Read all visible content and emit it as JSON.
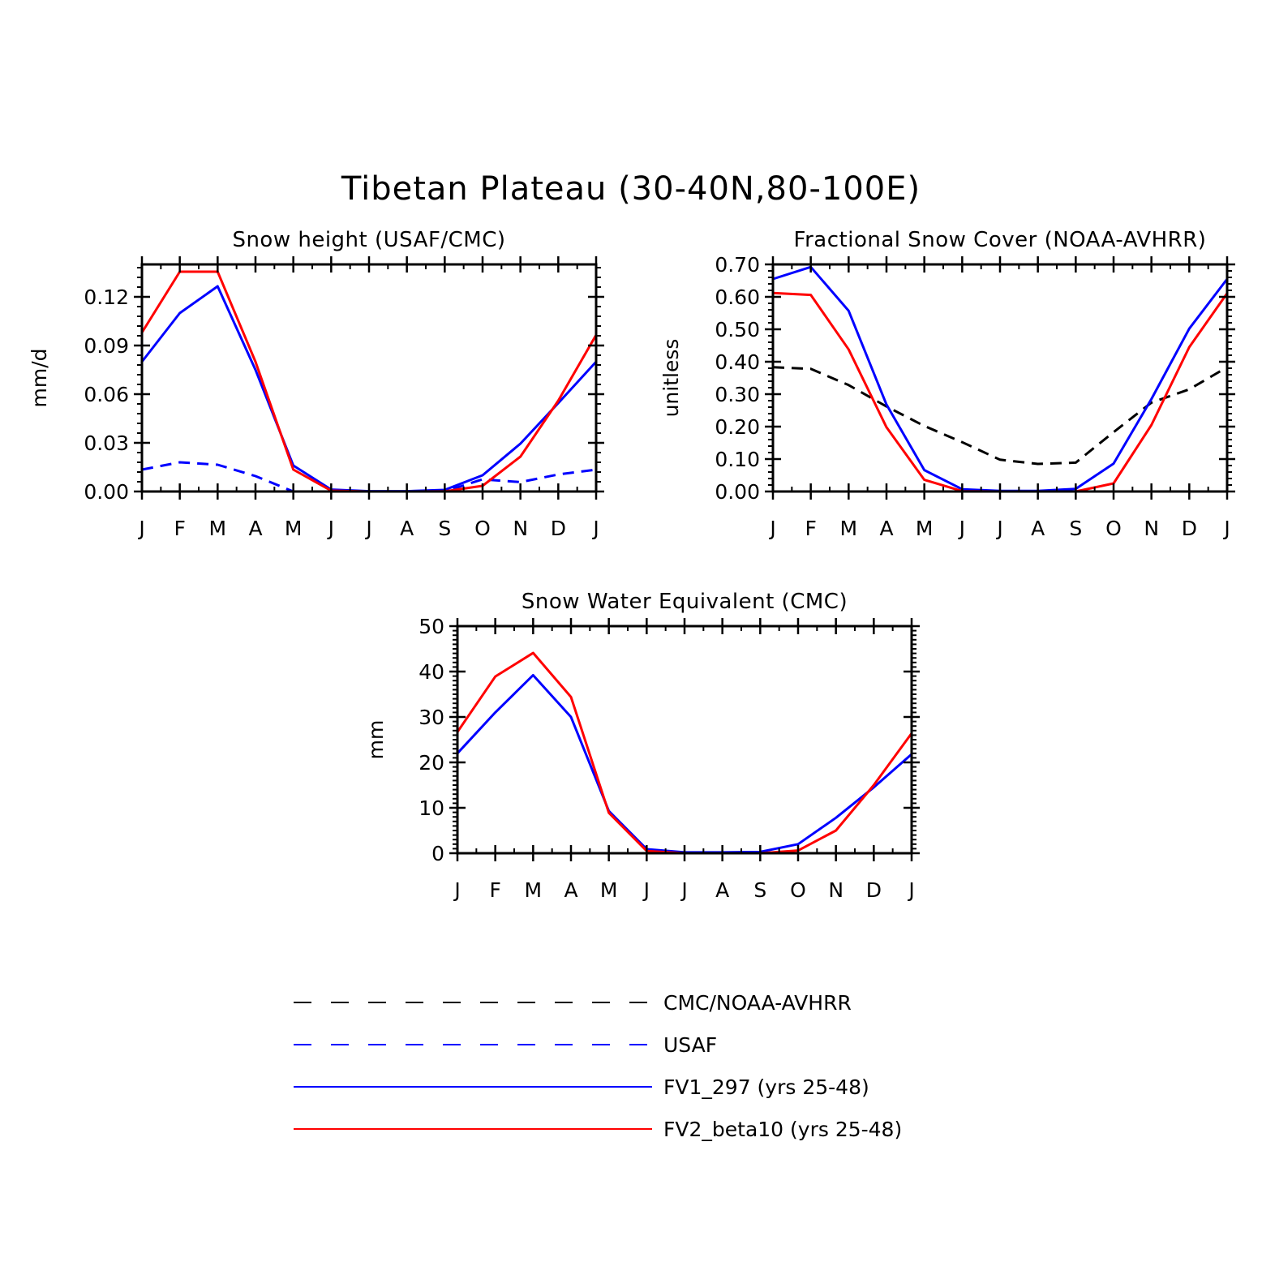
{
  "title": "Tibetan Plateau (30-40N,80-100E)",
  "colors": {
    "obs": "#000000",
    "usaf": "#0000ff",
    "fv1": "#0000ff",
    "fv2": "#ff0000"
  },
  "legend": [
    {
      "key": "obs",
      "label": "CMC/NOAA-AVHRR",
      "color": "#000000",
      "dash": true
    },
    {
      "key": "usaf",
      "label": "USAF",
      "color": "#0000ff",
      "dash": true
    },
    {
      "key": "fv1",
      "label": "FV1_297 (yrs 25-48)",
      "color": "#0000ff",
      "dash": false
    },
    {
      "key": "fv2",
      "label": "FV2_beta10 (yrs 25-48)",
      "color": "#ff0000",
      "dash": false
    }
  ],
  "chart_data": [
    {
      "type": "line",
      "title": "Snow height (USAF/CMC)",
      "xlabel": "",
      "ylabel": "mm/d",
      "categories": [
        "J",
        "F",
        "M",
        "A",
        "M",
        "J",
        "J",
        "A",
        "S",
        "O",
        "N",
        "D",
        "J"
      ],
      "ylim": [
        0,
        0.14
      ],
      "yticks": [
        0,
        0.03,
        0.06,
        0.09,
        0.12
      ],
      "ytick_labels": [
        "0.00",
        "0.03",
        "0.06",
        "0.09",
        "0.12"
      ],
      "series": [
        {
          "name": "CMC/NOAA-AVHRR",
          "color": "#000000",
          "dash": true,
          "values": [
            0,
            0,
            0,
            0,
            0,
            0,
            0,
            0,
            0,
            0,
            0,
            0,
            0
          ]
        },
        {
          "name": "USAF",
          "color": "#0000ff",
          "dash": true,
          "values": [
            0.0135,
            0.018,
            0.0165,
            0.0095,
            0.0,
            0.0,
            0.0,
            0.0,
            0.0,
            0.0075,
            0.0058,
            0.0105,
            0.0135
          ]
        },
        {
          "name": "FV1_297 (yrs 25-48)",
          "color": "#0000ff",
          "dash": false,
          "values": [
            0.08,
            0.11,
            0.1265,
            0.075,
            0.016,
            0.0012,
            0.0002,
            0.0002,
            0.001,
            0.01,
            0.0295,
            0.0545,
            0.08
          ]
        },
        {
          "name": "FV2_beta10 (yrs 25-48)",
          "color": "#ff0000",
          "dash": false,
          "values": [
            0.098,
            0.1355,
            0.1355,
            0.08,
            0.0135,
            0.0005,
            0.0,
            0.0,
            0.0001,
            0.0035,
            0.0215,
            0.056,
            0.0965
          ]
        }
      ]
    },
    {
      "type": "line",
      "title": "Fractional Snow Cover (NOAA-AVHRR)",
      "xlabel": "",
      "ylabel": "unitless",
      "categories": [
        "J",
        "F",
        "M",
        "A",
        "M",
        "J",
        "J",
        "A",
        "S",
        "O",
        "N",
        "D",
        "J"
      ],
      "ylim": [
        0,
        0.7
      ],
      "yticks": [
        0,
        0.1,
        0.2,
        0.3,
        0.4,
        0.5,
        0.6,
        0.7
      ],
      "ytick_labels": [
        "0.00",
        "0.10",
        "0.20",
        "0.30",
        "0.40",
        "0.50",
        "0.60",
        "0.70"
      ],
      "series": [
        {
          "name": "CMC/NOAA-AVHRR",
          "color": "#000000",
          "dash": true,
          "values": [
            0.383,
            0.378,
            0.328,
            0.262,
            0.202,
            0.152,
            0.098,
            0.085,
            0.089,
            0.183,
            0.274,
            0.315,
            0.383
          ]
        },
        {
          "name": "FV1_297 (yrs 25-48)",
          "color": "#0000ff",
          "dash": false,
          "values": [
            0.655,
            0.692,
            0.557,
            0.268,
            0.066,
            0.007,
            0.002,
            0.002,
            0.008,
            0.086,
            0.285,
            0.502,
            0.655
          ]
        },
        {
          "name": "FV2_beta10 (yrs 25-48)",
          "color": "#ff0000",
          "dash": false,
          "values": [
            0.612,
            0.606,
            0.438,
            0.198,
            0.036,
            0.001,
            0.0,
            0.0,
            0.0,
            0.025,
            0.205,
            0.445,
            0.611
          ]
        }
      ]
    },
    {
      "type": "line",
      "title": "Snow Water Equivalent (CMC)",
      "xlabel": "",
      "ylabel": "mm",
      "categories": [
        "J",
        "F",
        "M",
        "A",
        "M",
        "J",
        "J",
        "A",
        "S",
        "O",
        "N",
        "D",
        "J"
      ],
      "ylim": [
        0,
        50
      ],
      "yticks": [
        0,
        10,
        20,
        30,
        40,
        50
      ],
      "ytick_labels": [
        "0",
        "10",
        "20",
        "30",
        "40",
        "50"
      ],
      "series": [
        {
          "name": "CMC/NOAA-AVHRR",
          "color": "#000000",
          "dash": true,
          "values": [
            0,
            0,
            0,
            0,
            0,
            0,
            0,
            0,
            0,
            0,
            0,
            0,
            0
          ]
        },
        {
          "name": "FV1_297 (yrs 25-48)",
          "color": "#0000ff",
          "dash": false,
          "values": [
            22.0,
            31.0,
            39.2,
            30.0,
            9.3,
            0.9,
            0.2,
            0.2,
            0.3,
            2.0,
            7.8,
            14.5,
            21.8
          ]
        },
        {
          "name": "FV2_beta10 (yrs 25-48)",
          "color": "#ff0000",
          "dash": false,
          "values": [
            26.7,
            38.9,
            44.1,
            34.4,
            8.9,
            0.5,
            0.0,
            0.0,
            0.0,
            0.6,
            5.0,
            15.0,
            26.4
          ]
        }
      ]
    }
  ]
}
